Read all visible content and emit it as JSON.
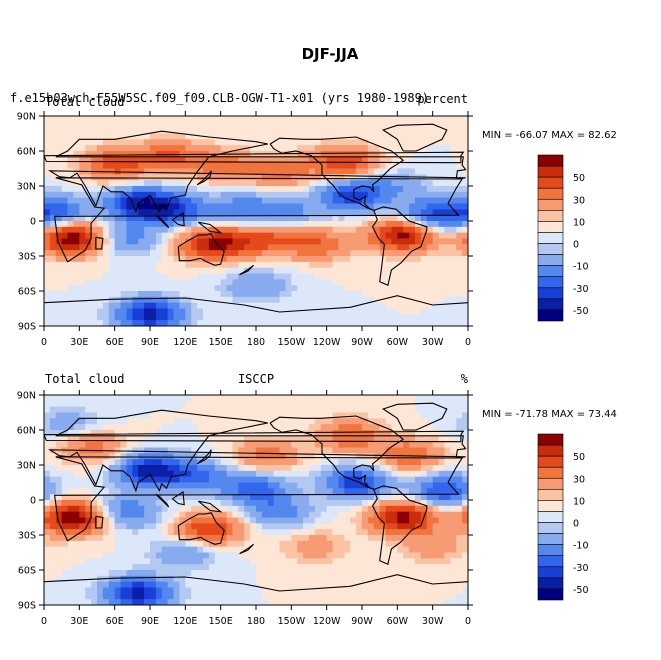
{
  "figure_title": "DJF-JJA",
  "panel_top": {
    "case_name": "f.e15b03wch-F55W5SC.f09_f09.CLB-OGW-T1-x01 (yrs 1980-1989)",
    "variable": "Total cloud",
    "units": "percent",
    "stats": "MIN = -66.07 MAX =  82.62"
  },
  "panel_bottom": {
    "variable": "Total cloud",
    "source": "ISCCP",
    "units": "%",
    "stats": "MIN = -71.78 MAX =  73.44"
  },
  "colors": {
    "ramp": [
      "#000080",
      "#0a1ea8",
      "#1a3fd6",
      "#3366ee",
      "#5588ee",
      "#88aaee",
      "#b3c9f2",
      "#dce7fa",
      "#fde6d6",
      "#fbc3a4",
      "#f79b74",
      "#f1743f",
      "#e64a1c",
      "#c92d0e",
      "#8b0000"
    ]
  },
  "chart_data": [
    {
      "type": "heatmap",
      "title": "DJF-JJA",
      "subtitle": "f.e15b03wch-F55W5SC.f09_f09.CLB-OGW-T1-x01 (yrs 1980-1989)",
      "variable": "Total cloud",
      "units": "percent",
      "x_ticks": [
        "0",
        "30E",
        "60E",
        "90E",
        "120E",
        "150E",
        "180",
        "150W",
        "120W",
        "90W",
        "60W",
        "30W",
        "0"
      ],
      "y_ticks": [
        "90N",
        "60N",
        "30N",
        "0",
        "30S",
        "60S",
        "90S"
      ],
      "xlim": [
        0,
        360
      ],
      "ylim": [
        -90,
        90
      ],
      "min": -66.07,
      "max": 82.62,
      "colorbar_levels": [
        -60,
        -50,
        -40,
        -30,
        -20,
        -10,
        -5,
        0,
        5,
        10,
        20,
        30,
        40,
        50,
        60
      ],
      "colorbar_labels": [
        "50",
        "30",
        "10",
        "0",
        "-10",
        "-30",
        "-50"
      ],
      "features": [
        {
          "lon": 25,
          "lat": -15,
          "value": 60
        },
        {
          "lon": 60,
          "lat": 48,
          "value": 35
        },
        {
          "lon": 105,
          "lat": 55,
          "value": 30
        },
        {
          "lon": 150,
          "lat": 48,
          "value": 25
        },
        {
          "lon": 200,
          "lat": 42,
          "value": 25
        },
        {
          "lon": 255,
          "lat": 50,
          "value": 40
        },
        {
          "lon": 305,
          "lat": -12,
          "value": 55
        },
        {
          "lon": 140,
          "lat": -20,
          "value": 40
        },
        {
          "lon": 165,
          "lat": -18,
          "value": 25
        },
        {
          "lon": 200,
          "lat": -15,
          "value": 25
        },
        {
          "lon": 235,
          "lat": -20,
          "value": 25
        },
        {
          "lon": 10,
          "lat": 8,
          "value": -35
        },
        {
          "lon": 80,
          "lat": 15,
          "value": -50
        },
        {
          "lon": 110,
          "lat": 10,
          "value": -40
        },
        {
          "lon": 165,
          "lat": 10,
          "value": -25
        },
        {
          "lon": 205,
          "lat": 8,
          "value": -25
        },
        {
          "lon": 262,
          "lat": 22,
          "value": -45
        },
        {
          "lon": 330,
          "lat": 5,
          "value": -40
        },
        {
          "lon": 70,
          "lat": -15,
          "value": -25
        },
        {
          "lon": 180,
          "lat": -55,
          "value": -20
        },
        {
          "lon": 90,
          "lat": -80,
          "value": -55
        },
        {
          "lon": 300,
          "lat": 30,
          "value": -15
        }
      ]
    },
    {
      "type": "heatmap",
      "variable": "Total cloud",
      "source": "ISCCP",
      "units": "%",
      "x_ticks": [
        "0",
        "30E",
        "60E",
        "90E",
        "120E",
        "150E",
        "180",
        "150W",
        "120W",
        "90W",
        "60W",
        "30W",
        "0"
      ],
      "y_ticks": [
        "90N",
        "60N",
        "30N",
        "0",
        "30S",
        "60S",
        "90S"
      ],
      "xlim": [
        0,
        360
      ],
      "ylim": [
        -90,
        90
      ],
      "min": -71.78,
      "max": 73.44,
      "colorbar_levels": [
        -60,
        -50,
        -40,
        -30,
        -20,
        -10,
        -5,
        0,
        5,
        10,
        20,
        30,
        40,
        50,
        60
      ],
      "colorbar_labels": [
        "50",
        "30",
        "10",
        "0",
        "-10",
        "-30",
        "-50"
      ],
      "features": [
        {
          "lon": 25,
          "lat": -15,
          "value": 60
        },
        {
          "lon": 305,
          "lat": -15,
          "value": 55
        },
        {
          "lon": 140,
          "lat": -25,
          "value": 40
        },
        {
          "lon": 310,
          "lat": 38,
          "value": 30
        },
        {
          "lon": 190,
          "lat": 38,
          "value": 25
        },
        {
          "lon": 40,
          "lat": 45,
          "value": 25
        },
        {
          "lon": 260,
          "lat": 55,
          "value": 30
        },
        {
          "lon": 90,
          "lat": 25,
          "value": -55
        },
        {
          "lon": 130,
          "lat": 20,
          "value": -30
        },
        {
          "lon": 180,
          "lat": 10,
          "value": -35
        },
        {
          "lon": 265,
          "lat": 15,
          "value": -45
        },
        {
          "lon": 340,
          "lat": 8,
          "value": -40
        },
        {
          "lon": 70,
          "lat": -10,
          "value": -30
        },
        {
          "lon": 200,
          "lat": -10,
          "value": -25
        },
        {
          "lon": 120,
          "lat": -45,
          "value": -20
        },
        {
          "lon": 80,
          "lat": -80,
          "value": -55
        },
        {
          "lon": 20,
          "lat": 65,
          "value": -15
        },
        {
          "lon": 330,
          "lat": -40,
          "value": 15
        },
        {
          "lon": 230,
          "lat": -40,
          "value": 15
        }
      ]
    }
  ]
}
